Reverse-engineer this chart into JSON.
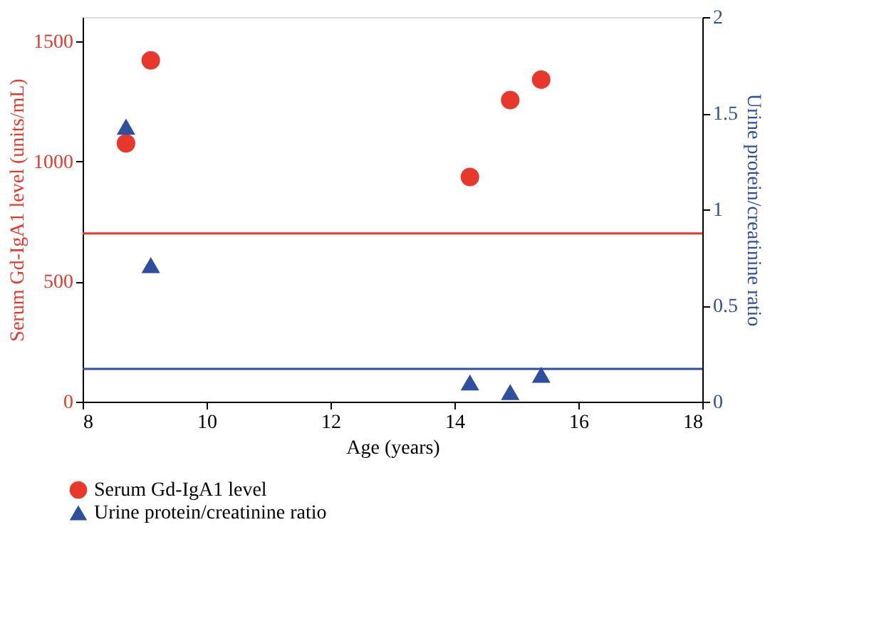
{
  "chart_data": {
    "type": "scatter",
    "xlabel": "Age (years)",
    "ylabel": "Serum Gd-IgA1 level (units/mL)",
    "y2label": "Urine protein/creatinine ratio",
    "xlim": [
      8,
      18
    ],
    "xticks": [
      8,
      10,
      12,
      14,
      16,
      18
    ],
    "ylim": [
      0,
      1600
    ],
    "yticks": [
      0,
      500,
      1000,
      1500
    ],
    "y2lim": [
      0,
      2
    ],
    "y2ticks": [
      0,
      0.5,
      1,
      1.5,
      2
    ],
    "series": [
      {
        "name": "Serum Gd-IgA1 level",
        "color": "#e8382b",
        "marker": "circle",
        "x": [
          8.7,
          9.1,
          14.25,
          14.9,
          15.4
        ],
        "values": [
          1075,
          1420,
          935,
          1255,
          1340
        ]
      },
      {
        "name": "Urine protein/creatinine ratio",
        "color": "#2e4f9e",
        "marker": "triangle",
        "axis": "y2",
        "x": [
          8.7,
          9.1,
          14.25,
          14.9,
          15.4
        ],
        "values": [
          1.43,
          0.71,
          0.1,
          0.05,
          0.14
        ]
      }
    ],
    "ref_lines": [
      {
        "axis": "y",
        "value": 700,
        "color": "#e8382b"
      },
      {
        "axis": "y2",
        "value": 0.17,
        "color": "#2e4f9e"
      }
    ],
    "grid": false,
    "legend": "bottom left"
  }
}
